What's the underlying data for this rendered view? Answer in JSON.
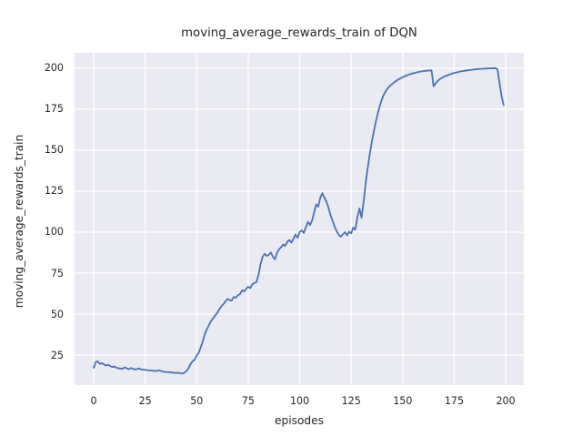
{
  "chart_data": {
    "type": "line",
    "title": "moving_average_rewards_train of DQN",
    "xlabel": "episodes",
    "ylabel": "moving_average_rewards_train",
    "x_ticks": [
      0,
      25,
      50,
      75,
      100,
      125,
      150,
      175,
      200
    ],
    "y_ticks": [
      25,
      50,
      75,
      100,
      125,
      150,
      175,
      200
    ],
    "xlim": [
      -9.3,
      208.8
    ],
    "ylim": [
      6.7,
      209.4
    ],
    "grid": true,
    "legend": null,
    "style": "seaborn-darkgrid",
    "colors": {
      "axes_background": "#eaeaf2",
      "grid": "#ffffff",
      "line": "#4c72b0",
      "text": "#262626",
      "figure_background": "#ffffff"
    },
    "series": [
      {
        "name": "DQN moving average rewards (train)",
        "x_start": 0,
        "x_step": 1,
        "values": [
          17.3,
          20.8,
          21.2,
          19.6,
          20.1,
          19.3,
          18.6,
          19.1,
          18.3,
          17.7,
          18.1,
          17.3,
          17.0,
          16.8,
          16.7,
          17.5,
          17.0,
          16.4,
          17.1,
          16.7,
          16.3,
          16.5,
          16.9,
          16.3,
          16.1,
          16.0,
          15.8,
          15.7,
          15.6,
          15.4,
          15.3,
          15.5,
          15.7,
          15.1,
          14.9,
          14.7,
          14.6,
          14.5,
          14.4,
          14.2,
          14.1,
          14.3,
          13.9,
          13.8,
          14.2,
          15.3,
          17.0,
          19.5,
          21.3,
          22.2,
          24.8,
          26.5,
          30.0,
          33.5,
          38.0,
          41.0,
          43.5,
          45.8,
          47.5,
          49.2,
          50.8,
          53.0,
          54.8,
          56.2,
          57.8,
          59.3,
          58.5,
          58.3,
          60.5,
          60.0,
          61.5,
          62.2,
          64.5,
          63.8,
          65.5,
          66.7,
          65.8,
          68.2,
          69.0,
          69.5,
          74.0,
          80.5,
          85.0,
          86.8,
          85.5,
          86.2,
          87.6,
          85.0,
          83.4,
          87.5,
          89.5,
          90.8,
          92.5,
          91.7,
          94.2,
          95.2,
          93.6,
          96.0,
          98.5,
          96.5,
          100.2,
          101.0,
          99.5,
          103.0,
          106.3,
          104.3,
          107.0,
          112.0,
          117.0,
          115.5,
          121.0,
          123.8,
          121.0,
          118.5,
          114.8,
          110.3,
          106.8,
          103.2,
          100.5,
          98.3,
          97.2,
          98.8,
          100.0,
          98.0,
          100.3,
          99.3,
          102.8,
          101.5,
          109.0,
          114.5,
          108.8,
          118.0,
          129.5,
          139.0,
          147.5,
          155.0,
          161.5,
          167.5,
          172.8,
          177.5,
          181.3,
          184.3,
          186.5,
          188.2,
          189.5,
          190.5,
          191.5,
          192.4,
          193.2,
          193.9,
          194.5,
          195.1,
          195.6,
          196.1,
          196.5,
          196.9,
          197.2,
          197.5,
          197.8,
          198.0,
          198.2,
          198.4,
          198.5,
          198.6,
          198.7,
          188.9,
          190.8,
          192.2,
          193.3,
          194.1,
          194.8,
          195.3,
          195.8,
          196.3,
          196.7,
          197.1,
          197.4,
          197.7,
          198.0,
          198.2,
          198.4,
          198.6,
          198.8,
          199.0,
          199.1,
          199.3,
          199.4,
          199.5,
          199.6,
          199.7,
          199.8,
          199.8,
          199.9,
          199.9,
          200.0,
          200.0,
          199.5,
          191.0,
          183.0,
          177.5
        ]
      }
    ]
  }
}
